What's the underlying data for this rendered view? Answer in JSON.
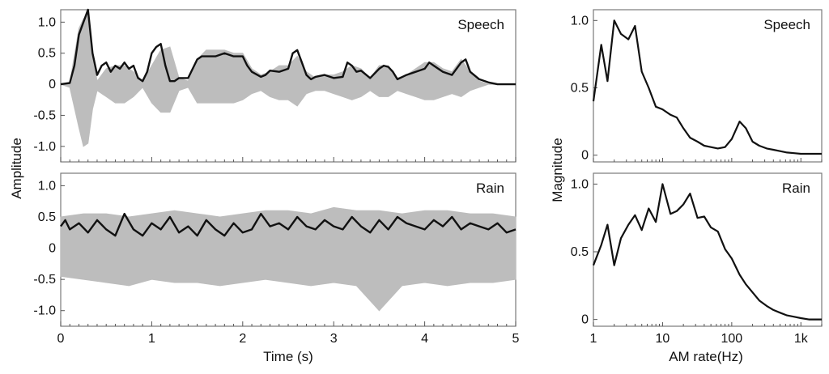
{
  "chart_data": [
    {
      "type": "line",
      "label": "Speech",
      "xlabel": "",
      "ylabel": "Amplitude",
      "xlim": [
        0,
        5
      ],
      "ylim": [
        -1.25,
        1.2
      ],
      "xticks": [],
      "yticks": [
        "1.0",
        "0.5",
        "0",
        "-0.5",
        "-1.0"
      ],
      "ytick_values": [
        1.0,
        0.5,
        0,
        -0.5,
        -1.0
      ],
      "series": [
        {
          "role": "waveform",
          "color": "#bdbdbd",
          "x": [
            0.0,
            0.1,
            0.2,
            0.25,
            0.3,
            0.35,
            0.4,
            0.5,
            0.6,
            0.7,
            0.8,
            0.9,
            1.0,
            1.1,
            1.2,
            1.3,
            1.4,
            1.5,
            1.6,
            1.7,
            1.8,
            1.9,
            2.0,
            2.1,
            2.2,
            2.3,
            2.4,
            2.5,
            2.6,
            2.7,
            2.8,
            2.9,
            3.0,
            3.1,
            3.2,
            3.3,
            3.4,
            3.5,
            3.6,
            3.7,
            3.8,
            3.9,
            4.0,
            4.1,
            4.2,
            4.3,
            4.4,
            4.5,
            4.6,
            4.7,
            4.8,
            5.0
          ],
          "upper": [
            0.0,
            0.02,
            0.9,
            1.05,
            1.15,
            0.5,
            0.05,
            0.25,
            0.3,
            0.3,
            0.2,
            0.05,
            0.3,
            0.55,
            0.6,
            0.1,
            0.05,
            0.4,
            0.55,
            0.55,
            0.55,
            0.5,
            0.5,
            0.25,
            0.15,
            0.2,
            0.3,
            0.3,
            0.45,
            0.2,
            0.1,
            0.15,
            0.15,
            0.2,
            0.3,
            0.25,
            0.1,
            0.3,
            0.3,
            0.1,
            0.15,
            0.25,
            0.35,
            0.35,
            0.25,
            0.2,
            0.4,
            0.2,
            0.05,
            0.0,
            0.0,
            0.0
          ],
          "lower": [
            0.0,
            -0.05,
            -0.7,
            -1.0,
            -0.95,
            -0.4,
            -0.1,
            -0.2,
            -0.3,
            -0.3,
            -0.2,
            -0.05,
            -0.3,
            -0.45,
            -0.45,
            -0.1,
            -0.05,
            -0.3,
            -0.3,
            -0.3,
            -0.3,
            -0.3,
            -0.25,
            -0.15,
            -0.1,
            -0.2,
            -0.25,
            -0.25,
            -0.35,
            -0.15,
            -0.1,
            -0.1,
            -0.15,
            -0.2,
            -0.25,
            -0.2,
            -0.1,
            -0.2,
            -0.2,
            -0.1,
            -0.15,
            -0.2,
            -0.25,
            -0.25,
            -0.2,
            -0.15,
            -0.2,
            -0.1,
            -0.05,
            0.0,
            0.0,
            0.0
          ]
        },
        {
          "role": "envelope",
          "color": "#111111",
          "x": [
            0.0,
            0.1,
            0.15,
            0.2,
            0.25,
            0.3,
            0.35,
            0.4,
            0.45,
            0.5,
            0.55,
            0.6,
            0.65,
            0.7,
            0.75,
            0.8,
            0.85,
            0.9,
            0.95,
            1.0,
            1.05,
            1.1,
            1.15,
            1.2,
            1.25,
            1.3,
            1.4,
            1.5,
            1.55,
            1.6,
            1.7,
            1.8,
            1.9,
            2.0,
            2.05,
            2.1,
            2.2,
            2.25,
            2.3,
            2.4,
            2.5,
            2.55,
            2.6,
            2.65,
            2.7,
            2.75,
            2.8,
            2.9,
            3.0,
            3.1,
            3.15,
            3.2,
            3.25,
            3.3,
            3.4,
            3.5,
            3.55,
            3.6,
            3.65,
            3.7,
            3.8,
            3.9,
            4.0,
            4.05,
            4.1,
            4.2,
            4.3,
            4.35,
            4.4,
            4.45,
            4.5,
            4.6,
            4.7,
            4.8,
            5.0
          ],
          "y": [
            0.0,
            0.02,
            0.3,
            0.8,
            1.0,
            1.2,
            0.5,
            0.15,
            0.3,
            0.35,
            0.2,
            0.3,
            0.25,
            0.35,
            0.25,
            0.3,
            0.1,
            0.05,
            0.2,
            0.5,
            0.6,
            0.65,
            0.3,
            0.05,
            0.05,
            0.1,
            0.1,
            0.4,
            0.45,
            0.45,
            0.45,
            0.5,
            0.45,
            0.45,
            0.3,
            0.2,
            0.12,
            0.15,
            0.22,
            0.2,
            0.25,
            0.5,
            0.55,
            0.35,
            0.15,
            0.08,
            0.12,
            0.15,
            0.1,
            0.12,
            0.35,
            0.3,
            0.2,
            0.22,
            0.1,
            0.25,
            0.3,
            0.28,
            0.2,
            0.08,
            0.15,
            0.2,
            0.25,
            0.35,
            0.3,
            0.2,
            0.15,
            0.25,
            0.35,
            0.4,
            0.2,
            0.08,
            0.03,
            0.0,
            0.0
          ]
        }
      ]
    },
    {
      "type": "line",
      "label": "Rain",
      "xlabel": "Time (s)",
      "ylabel": "Amplitude",
      "xlim": [
        0,
        5
      ],
      "ylim": [
        -1.25,
        1.2
      ],
      "xticks": [
        "0",
        "1",
        "2",
        "3",
        "4",
        "5"
      ],
      "xtick_values": [
        0,
        1,
        2,
        3,
        4,
        5
      ],
      "yticks": [
        "1.0",
        "0.5",
        "0",
        "-0.5",
        "-1.0"
      ],
      "ytick_values": [
        1.0,
        0.5,
        0,
        -0.5,
        -1.0
      ],
      "series": [
        {
          "role": "waveform",
          "color": "#bdbdbd",
          "x": [
            0.0,
            0.25,
            0.5,
            0.75,
            1.0,
            1.25,
            1.5,
            1.75,
            2.0,
            2.25,
            2.5,
            2.75,
            3.0,
            3.25,
            3.5,
            3.75,
            4.0,
            4.25,
            4.5,
            4.75,
            5.0
          ],
          "upper": [
            0.5,
            0.55,
            0.55,
            0.5,
            0.55,
            0.6,
            0.55,
            0.5,
            0.55,
            0.6,
            0.6,
            0.55,
            0.65,
            0.6,
            0.6,
            0.55,
            0.6,
            0.6,
            0.55,
            0.55,
            0.5
          ],
          "lower": [
            -0.45,
            -0.5,
            -0.55,
            -0.6,
            -0.5,
            -0.55,
            -0.55,
            -0.6,
            -0.55,
            -0.5,
            -0.55,
            -0.6,
            -0.55,
            -0.6,
            -1.0,
            -0.6,
            -0.55,
            -0.6,
            -0.55,
            -0.55,
            -0.5
          ]
        },
        {
          "role": "envelope",
          "color": "#111111",
          "x": [
            0.0,
            0.05,
            0.1,
            0.2,
            0.3,
            0.4,
            0.5,
            0.6,
            0.7,
            0.8,
            0.9,
            1.0,
            1.1,
            1.2,
            1.3,
            1.4,
            1.5,
            1.6,
            1.7,
            1.8,
            1.9,
            2.0,
            2.1,
            2.2,
            2.3,
            2.4,
            2.5,
            2.6,
            2.7,
            2.8,
            2.9,
            3.0,
            3.1,
            3.2,
            3.3,
            3.4,
            3.5,
            3.6,
            3.7,
            3.8,
            3.9,
            4.0,
            4.1,
            4.2,
            4.3,
            4.4,
            4.5,
            4.6,
            4.7,
            4.8,
            4.9,
            5.0
          ],
          "y": [
            0.35,
            0.45,
            0.3,
            0.4,
            0.25,
            0.45,
            0.3,
            0.2,
            0.55,
            0.3,
            0.2,
            0.4,
            0.3,
            0.5,
            0.25,
            0.35,
            0.2,
            0.45,
            0.3,
            0.2,
            0.4,
            0.25,
            0.3,
            0.55,
            0.35,
            0.4,
            0.3,
            0.5,
            0.35,
            0.3,
            0.45,
            0.35,
            0.3,
            0.5,
            0.35,
            0.25,
            0.45,
            0.3,
            0.5,
            0.4,
            0.35,
            0.3,
            0.45,
            0.35,
            0.5,
            0.3,
            0.4,
            0.35,
            0.3,
            0.4,
            0.25,
            0.3
          ]
        }
      ]
    },
    {
      "type": "line",
      "label": "Speech",
      "xlabel": "",
      "ylabel": "Magnitude",
      "xscale": "log",
      "xlim": [
        1,
        2000
      ],
      "ylim": [
        -0.05,
        1.08
      ],
      "xticks": [],
      "yticks": [
        "1.0",
        "0.5",
        "0"
      ],
      "ytick_values": [
        1.0,
        0.5,
        0
      ],
      "series": [
        {
          "color": "#111111",
          "x": [
            1,
            1.3,
            1.6,
            2,
            2.5,
            3.2,
            4,
            5,
            6.3,
            8,
            10,
            13,
            16,
            20,
            25,
            32,
            40,
            50,
            63,
            80,
            100,
            130,
            160,
            200,
            250,
            320,
            400,
            500,
            630,
            800,
            1000,
            2000
          ],
          "y": [
            0.4,
            0.82,
            0.55,
            1.0,
            0.9,
            0.86,
            0.96,
            0.62,
            0.5,
            0.36,
            0.34,
            0.3,
            0.28,
            0.2,
            0.13,
            0.1,
            0.07,
            0.06,
            0.05,
            0.06,
            0.12,
            0.25,
            0.2,
            0.1,
            0.07,
            0.05,
            0.04,
            0.03,
            0.02,
            0.015,
            0.01,
            0.01
          ]
        }
      ]
    },
    {
      "type": "line",
      "label": "Rain",
      "xlabel": "AM rate(Hz)",
      "ylabel": "Magnitude",
      "xscale": "log",
      "xlim": [
        1,
        2000
      ],
      "ylim": [
        -0.05,
        1.08
      ],
      "xticks": [
        "1",
        "10",
        "100",
        "1k"
      ],
      "xtick_values": [
        1,
        10,
        100,
        1000
      ],
      "yticks": [
        "1.0",
        "0.5",
        "0"
      ],
      "ytick_values": [
        1.0,
        0.5,
        0
      ],
      "series": [
        {
          "color": "#111111",
          "x": [
            1,
            1.3,
            1.6,
            2,
            2.5,
            3.2,
            4,
            5,
            6.3,
            8,
            10,
            13,
            16,
            20,
            25,
            32,
            40,
            50,
            63,
            80,
            100,
            130,
            160,
            200,
            250,
            320,
            400,
            500,
            630,
            800,
            1000,
            1300,
            2000
          ],
          "y": [
            0.4,
            0.55,
            0.7,
            0.4,
            0.6,
            0.7,
            0.77,
            0.66,
            0.82,
            0.72,
            1.0,
            0.78,
            0.8,
            0.85,
            0.93,
            0.75,
            0.76,
            0.68,
            0.65,
            0.52,
            0.45,
            0.33,
            0.26,
            0.2,
            0.14,
            0.1,
            0.07,
            0.05,
            0.03,
            0.02,
            0.01,
            0.0,
            0.0
          ]
        }
      ]
    }
  ]
}
